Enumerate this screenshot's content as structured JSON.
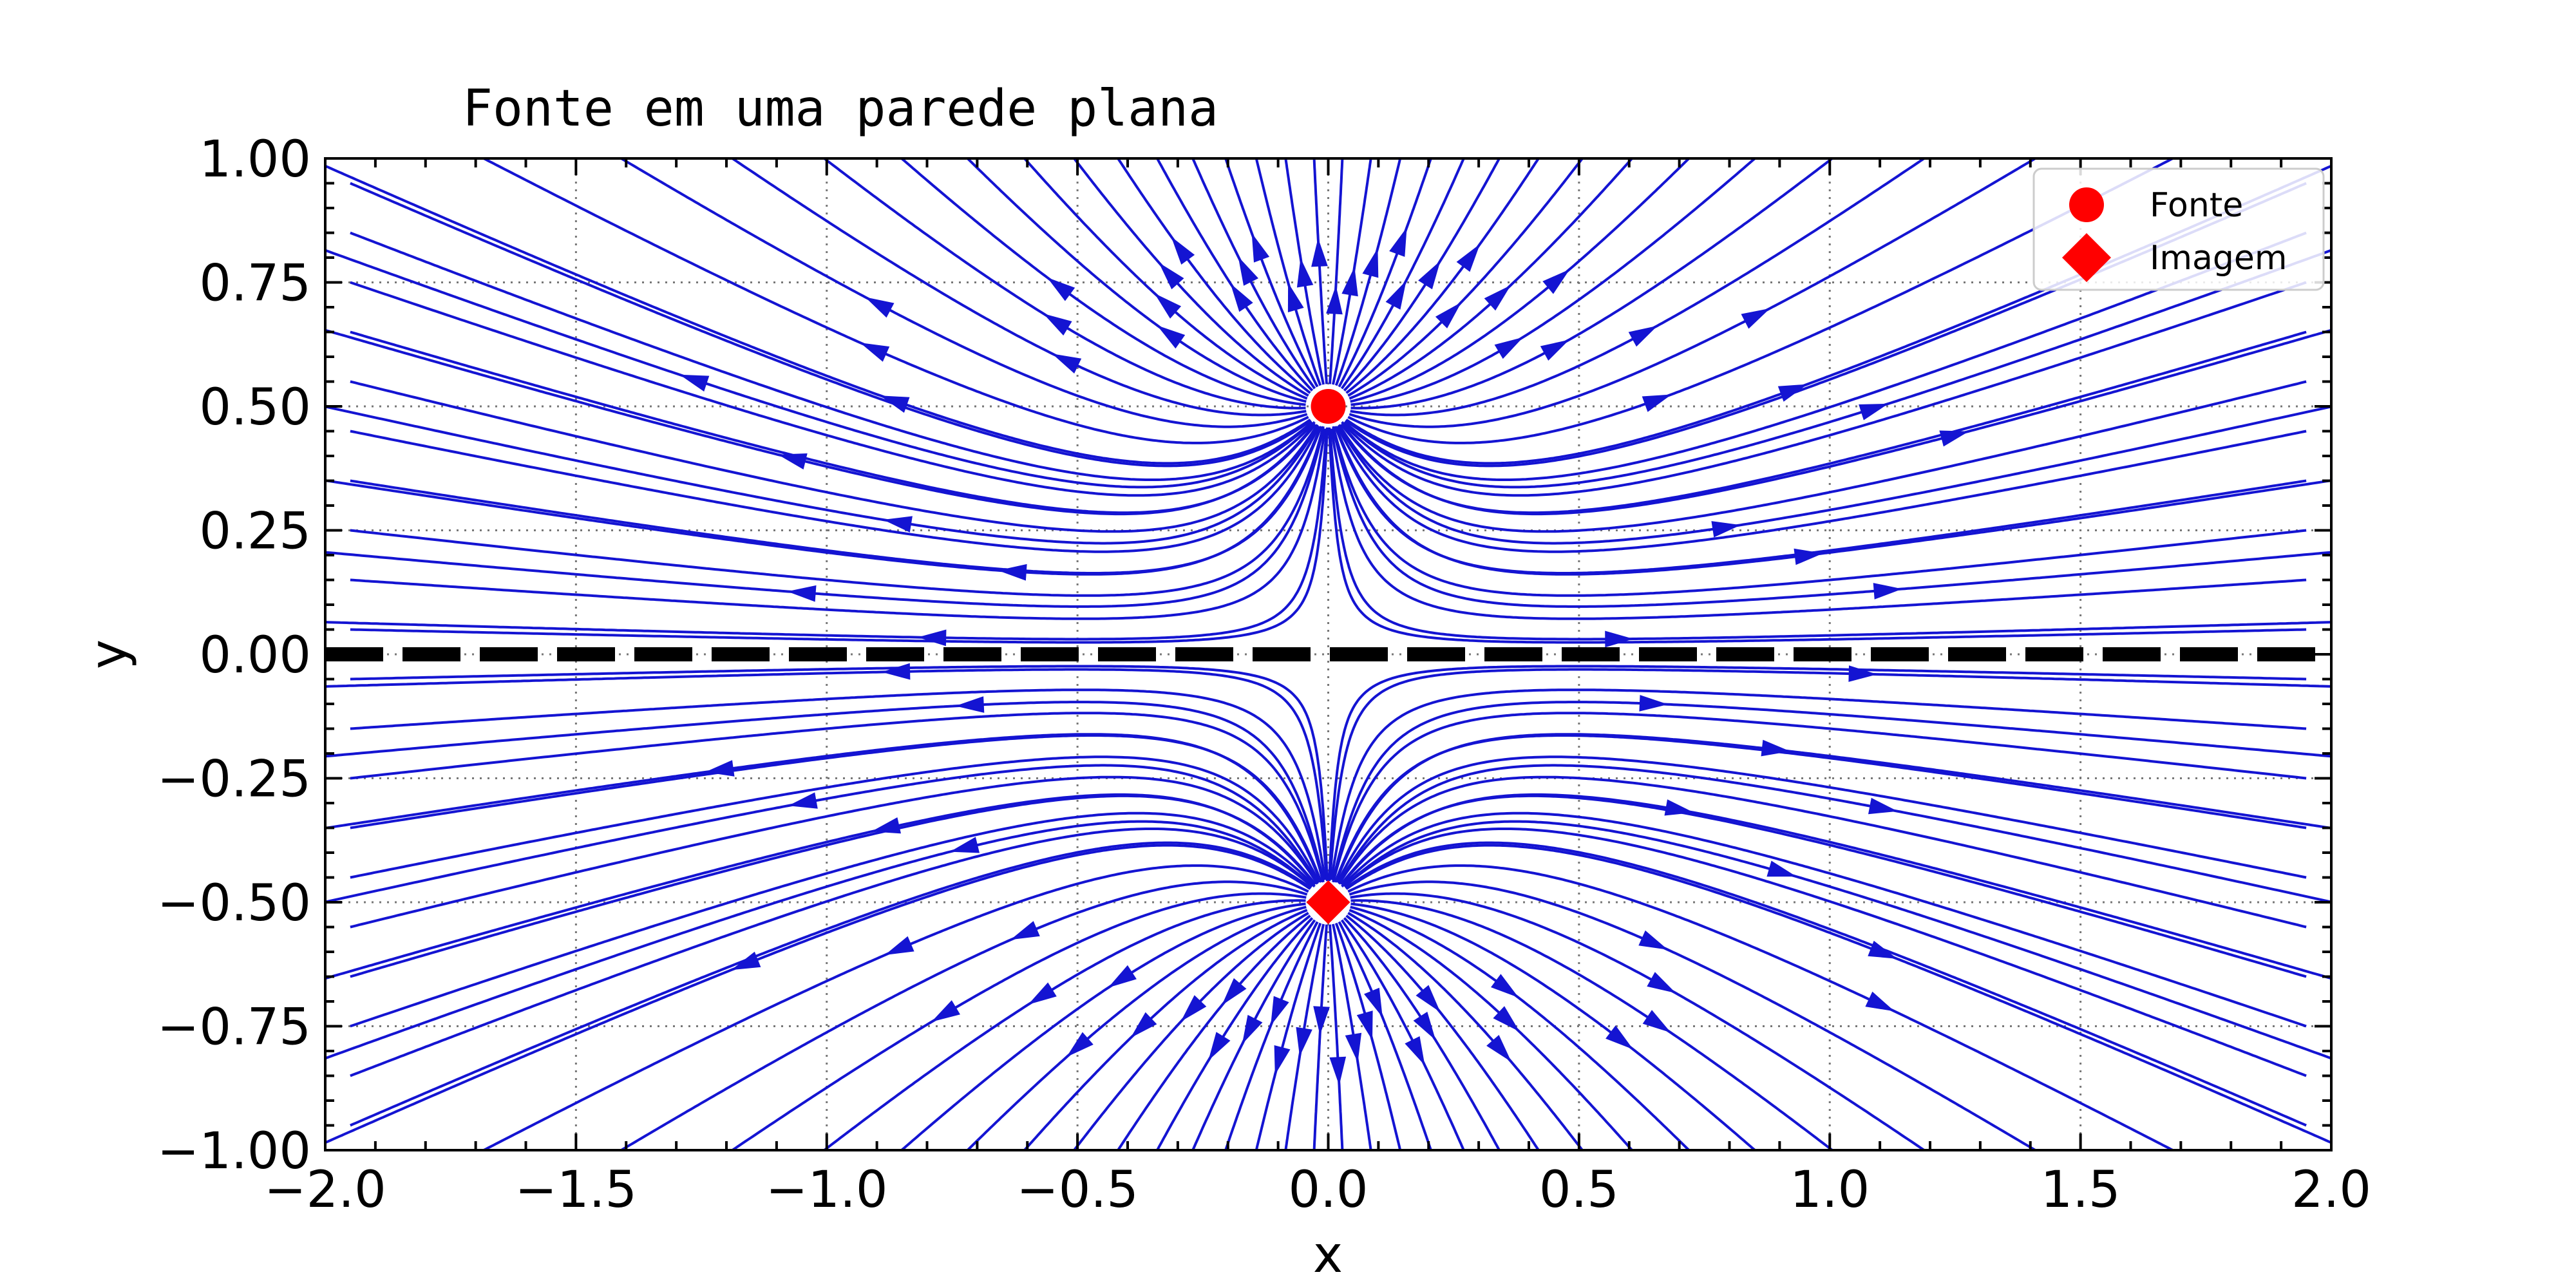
{
  "chart_data": {
    "type": "streamplot",
    "title": "Fonte em uma parede plana",
    "xlabel": "x",
    "ylabel": "y",
    "xlim": [
      -2.0,
      2.0
    ],
    "ylim": [
      -1.0,
      1.0
    ],
    "xticks": [
      "−2.0",
      "−1.5",
      "−1.0",
      "−0.5",
      "0.0",
      "0.5",
      "1.0",
      "1.5",
      "2.0"
    ],
    "yticks": [
      "1.00",
      "0.75",
      "0.50",
      "0.25",
      "0.00",
      "−0.25",
      "−0.50",
      "−0.75",
      "−1.00"
    ],
    "grid": true,
    "streamline_color": "#1414d2",
    "source": {
      "name": "Fonte",
      "x": 0.0,
      "y": 0.5,
      "marker": "circle",
      "color": "#ff0000"
    },
    "image": {
      "name": "Imagem",
      "x": 0.0,
      "y": -0.5,
      "marker": "diamond",
      "color": "#ff0000"
    },
    "wall": {
      "y": 0.0,
      "style": "dashed",
      "color": "#000000"
    },
    "legend": {
      "position": "top-right",
      "entries": [
        {
          "label": "Fonte",
          "marker": "circle",
          "color": "#ff0000"
        },
        {
          "label": "Imagem",
          "marker": "diamond",
          "color": "#ff0000"
        }
      ]
    }
  }
}
